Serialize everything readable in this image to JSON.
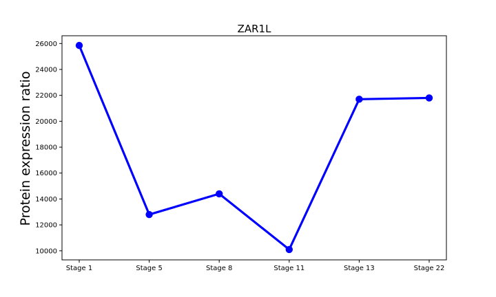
{
  "chart_data": {
    "type": "line",
    "title": "ZAR1L",
    "xlabel": "",
    "ylabel": "Protein expression ratio",
    "categories": [
      "Stage 1",
      "Stage 5",
      "Stage 8",
      "Stage 11",
      "Stage 13",
      "Stage 22"
    ],
    "series": [
      {
        "values": [
          25850,
          12800,
          14400,
          10100,
          21700,
          21800
        ],
        "color": "#0000ff"
      }
    ],
    "yticks": [
      10000,
      12000,
      14000,
      16000,
      18000,
      20000,
      22000,
      24000,
      26000
    ],
    "ylim": [
      9300,
      26600
    ],
    "grid": false,
    "legend": "none"
  }
}
